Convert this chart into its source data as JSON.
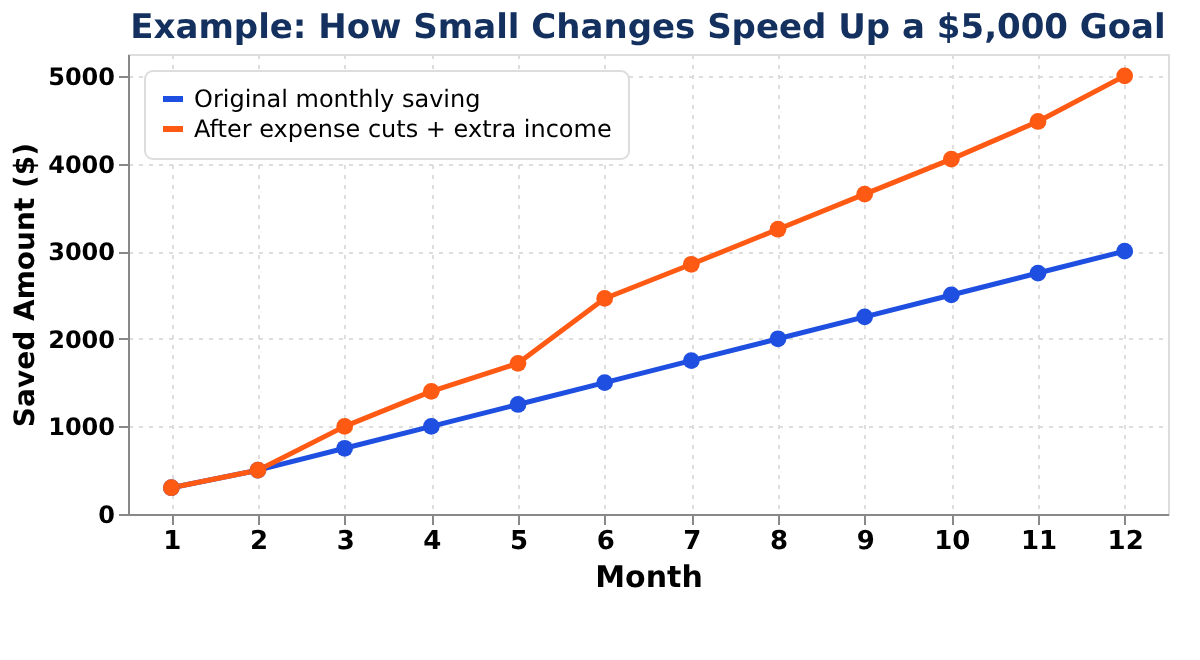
{
  "chart_data": {
    "type": "line",
    "title": "Example: How Small Changes Speed Up a $5,000 Goal",
    "xlabel": "Month",
    "ylabel": "Saved Amount ($)",
    "x": [
      1,
      2,
      3,
      4,
      5,
      6,
      7,
      8,
      9,
      10,
      11,
      12
    ],
    "series": [
      {
        "name": "Original monthly saving",
        "color": "#1f4fe0",
        "values": [
          300,
          500,
          750,
          1000,
          1250,
          1500,
          1750,
          2000,
          2250,
          2500,
          2750,
          3000
        ]
      },
      {
        "name": "After expense cuts + extra income",
        "color": "#ff5a14",
        "values": [
          300,
          500,
          1000,
          1400,
          1720,
          2460,
          2850,
          3250,
          3650,
          4050,
          4480,
          5000
        ]
      }
    ],
    "xlim": [
      0.5,
      12.5
    ],
    "xticks": [
      1,
      2,
      3,
      4,
      5,
      6,
      7,
      8,
      9,
      10,
      11,
      12
    ],
    "ylim": [
      0,
      5250
    ],
    "yticks": [
      0,
      1000,
      2000,
      3000,
      4000,
      5000
    ],
    "grid": true,
    "legend": "top left",
    "marker": "circle",
    "line_style": "solid"
  }
}
